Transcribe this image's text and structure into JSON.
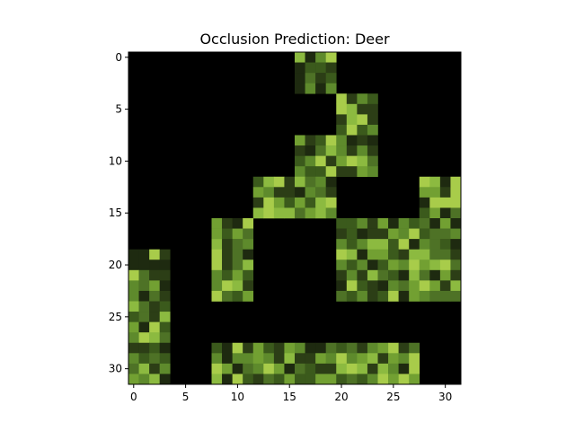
{
  "chart_data": {
    "type": "heatmap",
    "title": "Occlusion Prediction: Deer",
    "xlabel": "",
    "ylabel": "",
    "grid": false,
    "xlim": [
      -0.5,
      31.5
    ],
    "ylim": [
      31.5,
      -0.5
    ],
    "grid_size": [
      32,
      32
    ],
    "x_ticks": [
      0,
      5,
      10,
      15,
      20,
      25,
      30
    ],
    "y_ticks": [
      0,
      5,
      10,
      15,
      20,
      25,
      30
    ],
    "background_color": "#000000",
    "palette": [
      "#1e2a10",
      "#2c3e16",
      "#3b5a1c",
      "#4e7226",
      "#5e8a2c",
      "#72a032",
      "#8cba40",
      "#a8cc4a"
    ],
    "visible_regions": [
      {
        "rows": [
          0,
          3
        ],
        "cols": [
          16,
          19
        ]
      },
      {
        "rows": [
          4,
          7
        ],
        "cols": [
          20,
          23
        ]
      },
      {
        "rows": [
          8,
          11
        ],
        "cols": [
          16,
          23
        ]
      },
      {
        "rows": [
          12,
          15
        ],
        "cols": [
          12,
          15
        ]
      },
      {
        "rows": [
          12,
          13
        ],
        "cols": [
          16,
          19
        ]
      },
      {
        "rows": [
          14,
          15
        ],
        "cols": [
          16,
          19
        ]
      },
      {
        "rows": [
          12,
          15
        ],
        "cols": [
          28,
          31
        ]
      },
      {
        "rows": [
          16,
          23
        ],
        "cols": [
          8,
          11
        ]
      },
      {
        "rows": [
          16,
          23
        ],
        "cols": [
          20,
          31
        ]
      },
      {
        "rows": [
          19,
          31
        ],
        "cols": [
          0,
          3
        ]
      },
      {
        "rows": [
          28,
          31
        ],
        "cols": [
          8,
          27
        ]
      }
    ]
  }
}
